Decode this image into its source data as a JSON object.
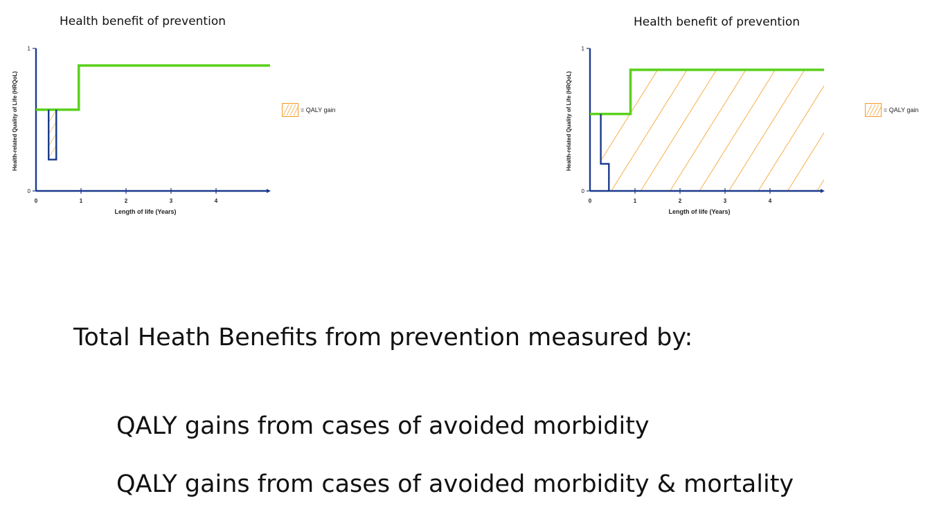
{
  "colors": {
    "with_prevention": "#5cd11e",
    "without_prevention": "#1a3a8c",
    "qaly_hatch": "#f59a1e",
    "axis": "#1a3a8c"
  },
  "chart_data": [
    {
      "type": "line",
      "title": "Health benefit of prevention",
      "xlabel": "Length of life (Years)",
      "ylabel": "Health-related Quality of Life (HRQoL)",
      "x_ticks": [
        "0",
        "1",
        "2",
        "3",
        "4"
      ],
      "y_ticks": [
        "0",
        "1"
      ],
      "xlim": [
        0,
        5.2
      ],
      "ylim": [
        0,
        1
      ],
      "legend": {
        "label": "= QALY gain",
        "placement": "right"
      },
      "series": [
        {
          "key": "with_prevention",
          "x": [
            0,
            0.95,
            0.95,
            5.2
          ],
          "y": [
            0.57,
            0.57,
            0.88,
            0.88
          ]
        },
        {
          "key": "without_prevention",
          "x": [
            0.28,
            0.28,
            0.45,
            0.45
          ],
          "y": [
            0.57,
            0.22,
            0.22,
            0.57
          ]
        }
      ],
      "qaly_area": {
        "x": [
          0.28,
          0.45
        ],
        "y": [
          0.22,
          0.57
        ]
      }
    },
    {
      "type": "line",
      "title": "Health benefit of prevention",
      "xlabel": "Length of life (Years)",
      "ylabel": "Health-related Quality of Life (HRQoL)",
      "x_ticks": [
        "0",
        "1",
        "2",
        "3",
        "4"
      ],
      "y_ticks": [
        "0",
        "1"
      ],
      "xlim": [
        0,
        5.2
      ],
      "ylim": [
        0,
        1
      ],
      "legend": {
        "label": "= QALY gain",
        "placement": "right"
      },
      "series": [
        {
          "key": "with_prevention",
          "x": [
            0,
            0.9,
            0.9,
            5.2
          ],
          "y": [
            0.54,
            0.54,
            0.85,
            0.85
          ]
        },
        {
          "key": "without_prevention",
          "x": [
            0.24,
            0.24,
            0.42,
            0.42
          ],
          "y": [
            0.54,
            0.19,
            0.19,
            0
          ]
        }
      ],
      "qaly_area": {
        "x": [
          0.24,
          5.2
        ],
        "y": [
          0,
          0.85
        ]
      }
    }
  ],
  "bullets": {
    "heading": "Total Heath Benefits from prevention measured by:",
    "items": [
      "QALY gains from cases of avoided morbidity",
      "QALY gains from cases of avoided morbidity & mortality"
    ]
  }
}
